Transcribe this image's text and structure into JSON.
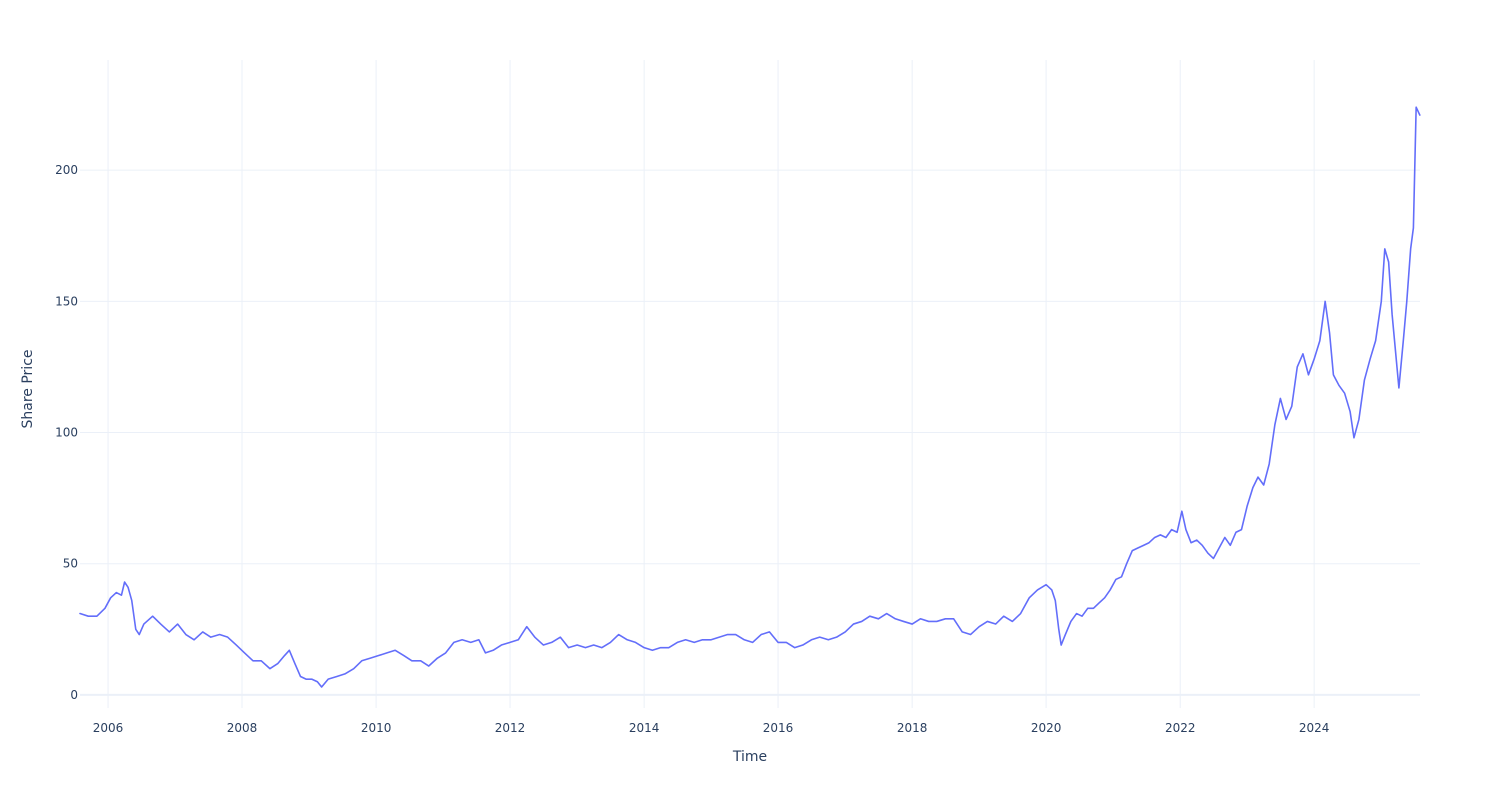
{
  "chart_data": {
    "type": "line",
    "title": "",
    "xlabel": "Time",
    "ylabel": "Share Price",
    "xlim": [
      "2005-08-01",
      "2025-07-31"
    ],
    "ylim": [
      -5,
      242
    ],
    "x_ticks": [
      "2006",
      "2008",
      "2010",
      "2012",
      "2014",
      "2016",
      "2018",
      "2020",
      "2022",
      "2024"
    ],
    "y_ticks": [
      0,
      50,
      100,
      150,
      200
    ],
    "grid": true,
    "line_color": "#636efa",
    "series": [
      {
        "x": [
          "2005-08-01",
          "2005-09-15",
          "2005-11-01",
          "2005-12-15",
          "2006-01-15",
          "2006-02-15",
          "2006-03-15",
          "2006-04-01",
          "2006-04-20",
          "2006-05-10",
          "2006-06-01",
          "2006-06-20",
          "2006-07-15",
          "2006-09-01",
          "2006-10-15",
          "2006-12-01",
          "2007-01-15",
          "2007-03-01",
          "2007-04-15",
          "2007-06-01",
          "2007-07-15",
          "2007-09-01",
          "2007-10-15",
          "2007-12-01",
          "2008-01-15",
          "2008-03-01",
          "2008-04-15",
          "2008-06-01",
          "2008-07-15",
          "2008-08-20",
          "2008-09-15",
          "2008-10-15",
          "2008-11-15",
          "2008-12-15",
          "2009-01-15",
          "2009-02-15",
          "2009-03-10",
          "2009-04-15",
          "2009-06-01",
          "2009-07-15",
          "2009-09-01",
          "2009-10-15",
          "2009-12-01",
          "2010-01-15",
          "2010-03-01",
          "2010-04-15",
          "2010-06-01",
          "2010-07-15",
          "2010-09-01",
          "2010-10-15",
          "2010-12-01",
          "2011-01-15",
          "2011-03-01",
          "2011-04-15",
          "2011-06-01",
          "2011-07-15",
          "2011-08-20",
          "2011-10-01",
          "2011-11-15",
          "2012-01-01",
          "2012-02-15",
          "2012-04-01",
          "2012-05-15",
          "2012-07-01",
          "2012-08-15",
          "2012-10-01",
          "2012-11-15",
          "2013-01-01",
          "2013-02-15",
          "2013-04-01",
          "2013-05-15",
          "2013-07-01",
          "2013-08-15",
          "2013-10-01",
          "2013-11-15",
          "2014-01-01",
          "2014-02-15",
          "2014-04-01",
          "2014-05-15",
          "2014-07-01",
          "2014-08-15",
          "2014-10-01",
          "2014-11-15",
          "2015-01-01",
          "2015-02-15",
          "2015-04-01",
          "2015-05-15",
          "2015-07-01",
          "2015-08-15",
          "2015-10-01",
          "2015-11-15",
          "2016-01-01",
          "2016-02-15",
          "2016-04-01",
          "2016-05-15",
          "2016-07-01",
          "2016-08-15",
          "2016-10-01",
          "2016-11-15",
          "2017-01-01",
          "2017-02-15",
          "2017-04-01",
          "2017-05-15",
          "2017-07-01",
          "2017-08-15",
          "2017-10-01",
          "2017-11-15",
          "2018-01-01",
          "2018-02-15",
          "2018-04-01",
          "2018-05-15",
          "2018-07-01",
          "2018-08-15",
          "2018-10-01",
          "2018-11-15",
          "2019-01-01",
          "2019-02-15",
          "2019-04-01",
          "2019-05-15",
          "2019-07-01",
          "2019-08-15",
          "2019-10-01",
          "2019-11-15",
          "2020-01-01",
          "2020-02-01",
          "2020-02-20",
          "2020-03-10",
          "2020-03-23",
          "2020-04-15",
          "2020-05-15",
          "2020-06-15",
          "2020-07-15",
          "2020-08-15",
          "2020-09-15",
          "2020-10-15",
          "2020-11-15",
          "2020-12-15",
          "2021-01-15",
          "2021-02-15",
          "2021-03-15",
          "2021-04-15",
          "2021-05-15",
          "2021-06-15",
          "2021-07-15",
          "2021-08-15",
          "2021-09-15",
          "2021-10-15",
          "2021-11-15",
          "2021-12-15",
          "2022-01-10",
          "2022-02-01",
          "2022-03-01",
          "2022-04-01",
          "2022-05-01",
          "2022-06-01",
          "2022-07-01",
          "2022-08-01",
          "2022-09-01",
          "2022-10-01",
          "2022-11-01",
          "2022-12-01",
          "2023-01-01",
          "2023-02-01",
          "2023-03-01",
          "2023-04-01",
          "2023-05-01",
          "2023-06-01",
          "2023-07-01",
          "2023-08-01",
          "2023-09-01",
          "2023-10-01",
          "2023-11-01",
          "2023-12-01",
          "2024-01-01",
          "2024-02-01",
          "2024-03-01",
          "2024-03-25",
          "2024-04-15",
          "2024-05-15",
          "2024-06-15",
          "2024-07-15",
          "2024-08-05",
          "2024-09-01",
          "2024-10-01",
          "2024-11-01",
          "2024-12-01",
          "2025-01-01",
          "2025-01-20",
          "2025-02-10",
          "2025-03-01",
          "2025-04-07",
          "2025-05-01",
          "2025-05-20",
          "2025-06-10",
          "2025-06-25",
          "2025-07-10",
          "2025-07-30"
        ],
        "y": [
          31,
          30,
          30,
          33,
          37,
          39,
          38,
          43,
          41,
          36,
          25,
          23,
          27,
          30,
          27,
          24,
          27,
          23,
          21,
          24,
          22,
          23,
          22,
          19,
          16,
          13,
          13,
          10,
          12,
          15,
          17,
          12,
          7,
          6,
          6,
          5,
          3,
          6,
          7,
          8,
          10,
          13,
          14,
          15,
          16,
          17,
          15,
          13,
          13,
          11,
          14,
          16,
          20,
          21,
          20,
          21,
          16,
          17,
          19,
          20,
          21,
          26,
          22,
          19,
          20,
          22,
          18,
          19,
          18,
          19,
          18,
          20,
          23,
          21,
          20,
          18,
          17,
          18,
          18,
          20,
          21,
          20,
          21,
          21,
          22,
          23,
          23,
          21,
          20,
          23,
          24,
          20,
          20,
          18,
          19,
          21,
          22,
          21,
          22,
          24,
          27,
          28,
          30,
          29,
          31,
          29,
          28,
          27,
          29,
          28,
          28,
          29,
          29,
          24,
          23,
          26,
          28,
          27,
          30,
          28,
          31,
          37,
          40,
          42,
          40,
          36,
          25,
          19,
          23,
          28,
          31,
          30,
          33,
          33,
          35,
          37,
          40,
          44,
          45,
          50,
          55,
          56,
          57,
          58,
          60,
          61,
          60,
          63,
          62,
          70,
          63,
          58,
          59,
          57,
          54,
          52,
          56,
          60,
          57,
          62,
          63,
          72,
          79,
          83,
          80,
          88,
          103,
          113,
          105,
          110,
          125,
          130,
          122,
          128,
          135,
          150,
          138,
          122,
          118,
          115,
          108,
          98,
          105,
          120,
          128,
          135,
          150,
          170,
          165,
          145,
          117,
          135,
          150,
          170,
          178,
          224,
          221
        ]
      }
    ]
  }
}
